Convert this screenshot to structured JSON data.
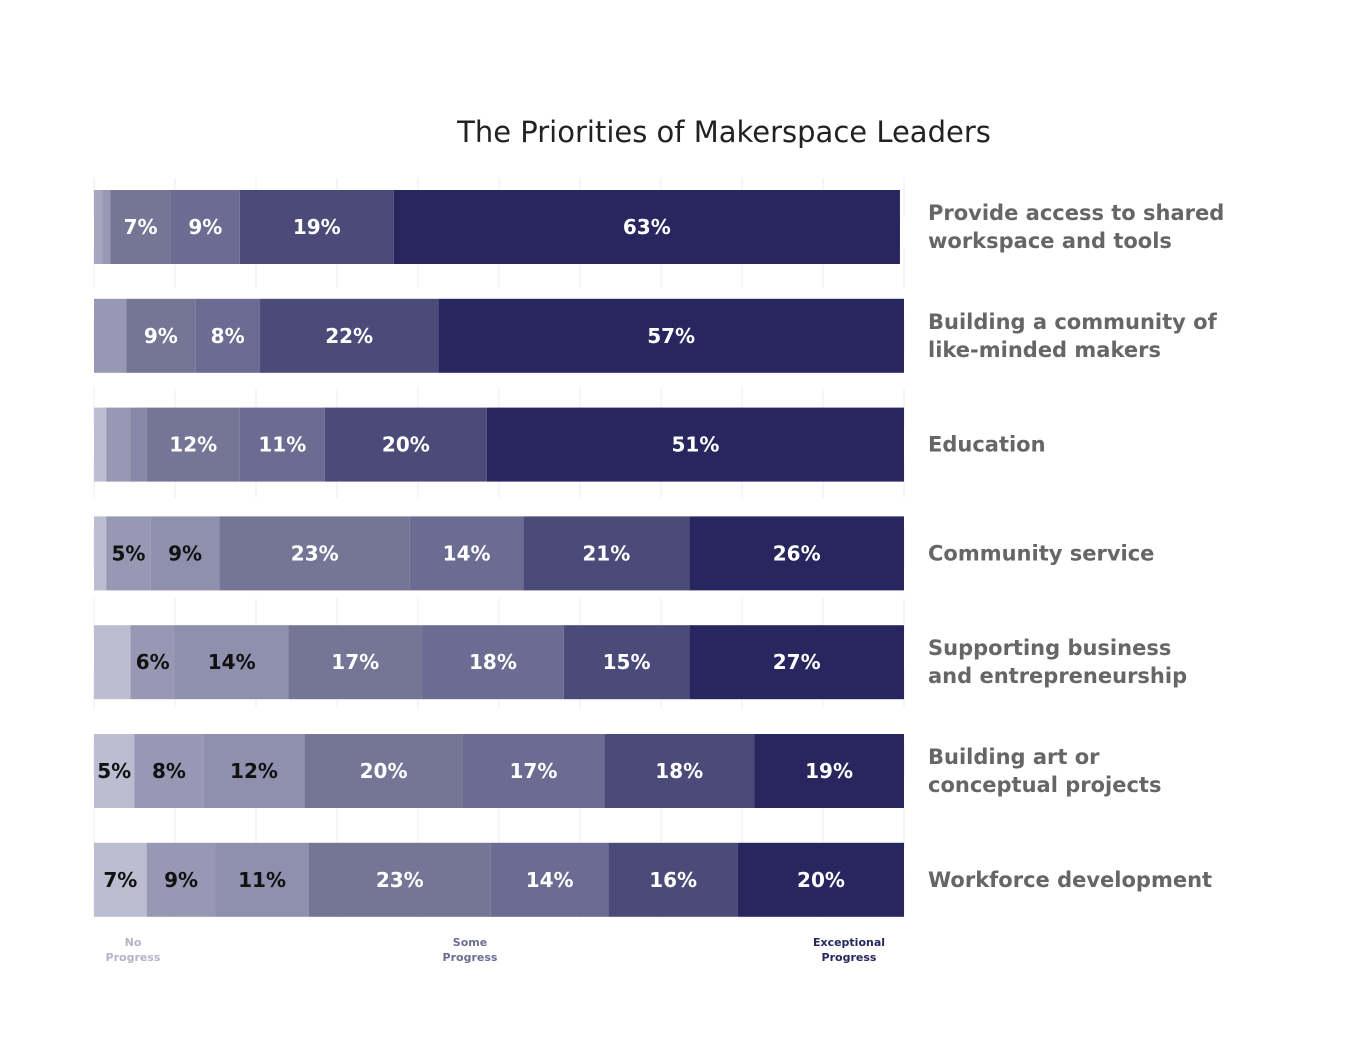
{
  "chart_data": {
    "type": "bar",
    "orientation": "horizontal",
    "stacked": true,
    "title": "The Priorities of Makerspace Leaders",
    "xlim": [
      0,
      100
    ],
    "grid": true,
    "levels": 8,
    "categories": [
      "Provide access to shared\nworkspace and tools",
      "Building a community of\nlike-minded makers",
      "Education",
      "Community service",
      "Supporting business\nand entrepreneurship",
      "Building art or\nconceptual projects",
      "Workforce development"
    ],
    "rows": [
      [
        0,
        1,
        1,
        7.5,
        8.5,
        19,
        62.5
      ],
      [
        0,
        0,
        4,
        8.5,
        8,
        22,
        57.5
      ],
      [
        1.5,
        3,
        2,
        11.5,
        10.5,
        20,
        51.5
      ],
      [
        1.5,
        0,
        5.5,
        8.5,
        23.5,
        14,
        20.5,
        26.5
      ],
      [
        4.5,
        0,
        5.5,
        14,
        16.5,
        17.5,
        15.5,
        26.5
      ],
      [
        0,
        5,
        8.5,
        12.5,
        19.5,
        17.5,
        18.5,
        18.5
      ],
      [
        0,
        6.5,
        8.5,
        11.5,
        22.5,
        14.5,
        16,
        20.5
      ]
    ],
    "row_offsets": [
      0,
      0,
      0,
      0,
      0,
      0,
      0
    ],
    "segment_labels": [
      [
        "",
        "",
        "",
        "7%",
        "9%",
        "19%",
        "63%"
      ],
      [
        "",
        "",
        "",
        "9%",
        "8%",
        "22%",
        "57%"
      ],
      [
        "",
        "",
        "",
        "12%",
        "11%",
        "20%",
        "51%"
      ],
      [
        "",
        "",
        "5%",
        "9%",
        "23%",
        "14%",
        "21%",
        "26%"
      ],
      [
        "",
        "",
        "6%",
        "14%",
        "17%",
        "18%",
        "15%",
        "27%"
      ],
      [
        "",
        "5%",
        "8%",
        "12%",
        "20%",
        "17%",
        "18%",
        "19%"
      ],
      [
        "",
        "7%",
        "9%",
        "11%",
        "23%",
        "14%",
        "16%",
        "20%"
      ]
    ],
    "row_colors": [
      [
        "#bdbdd1",
        "#a6a6bf",
        "#9898b5",
        "#757596",
        "#6c6c93",
        "#4b4b7a",
        "#27265e"
      ],
      [
        "#bdbdd1",
        "#a6a6bf",
        "#9898b5",
        "#757596",
        "#6c6c93",
        "#4b4b7a",
        "#27265e"
      ],
      [
        "#bdbdd1",
        "#9898b5",
        "#8888a8",
        "#757596",
        "#6c6c93",
        "#4b4b7a",
        "#27265e"
      ],
      [
        "#bdbdd1",
        "#bdbdd1",
        "#9898b5",
        "#8f8fae",
        "#757596",
        "#6c6c93",
        "#4b4b7a",
        "#27265e"
      ],
      [
        "#bdbdd1",
        "#bdbdd1",
        "#9898b5",
        "#8f8fae",
        "#757596",
        "#6c6c93",
        "#4b4b7a",
        "#27265e"
      ],
      [
        "#bdbdd1",
        "#bdbdd1",
        "#9898b5",
        "#8f8fae",
        "#757596",
        "#6c6c93",
        "#4b4b7a",
        "#27265e"
      ],
      [
        "#bdbdd1",
        "#bdbdd1",
        "#9898b5",
        "#8f8fae",
        "#757596",
        "#6c6c93",
        "#4b4b7a",
        "#27265e"
      ]
    ],
    "label_colors": {
      "light_segments": "#111111",
      "dark_segments": "#ffffff"
    },
    "legend": [
      {
        "label": "No\nProgress",
        "color": "#b4b4c8"
      },
      {
        "label": "Some\nProgress",
        "color": "#6c6c93"
      },
      {
        "label": "Exceptional\nProgress",
        "color": "#27265e"
      }
    ]
  }
}
